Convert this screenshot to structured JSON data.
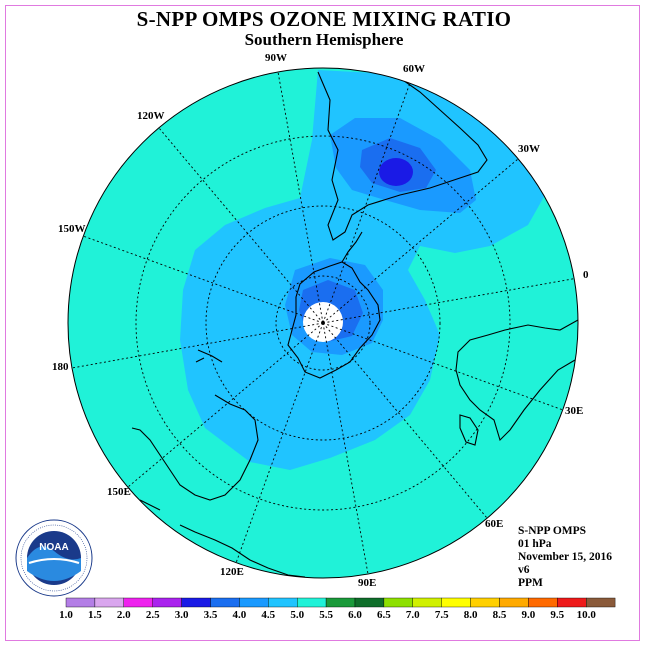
{
  "title": "S-NPP OMPS OZONE MIXING RATIO",
  "subtitle": "Southern Hemisphere",
  "longitude_labels": [
    {
      "key": "lon_90w",
      "text": "90W"
    },
    {
      "key": "lon_60w",
      "text": "60W"
    },
    {
      "key": "lon_120w",
      "text": "120W"
    },
    {
      "key": "lon_30w",
      "text": "30W"
    },
    {
      "key": "lon_150w",
      "text": "150W"
    },
    {
      "key": "lon_0",
      "text": "0"
    },
    {
      "key": "lon_180",
      "text": "180"
    },
    {
      "key": "lon_30e",
      "text": "30E"
    },
    {
      "key": "lon_150e",
      "text": "150E"
    },
    {
      "key": "lon_60e",
      "text": "60E"
    },
    {
      "key": "lon_120e",
      "text": "120E"
    },
    {
      "key": "lon_90e",
      "text": "90E"
    }
  ],
  "info": {
    "instrument": "S-NPP OMPS",
    "level": "01 hPa",
    "date": "November 15, 2016",
    "version": "v6",
    "units": "PPM"
  },
  "logo": {
    "name": "NOAA",
    "ring_text": "NATIONAL OCEANIC AND ATMOSPHERIC ADMINISTRATION · U.S. DEPARTMENT OF COMMERCE"
  },
  "colorbar": {
    "labels": [
      "1.0",
      "1.5",
      "2.0",
      "2.5",
      "3.0",
      "3.5",
      "4.0",
      "4.5",
      "5.0",
      "5.5",
      "6.0",
      "6.5",
      "7.0",
      "7.5",
      "8.0",
      "8.5",
      "9.0",
      "9.5",
      "10.0"
    ],
    "colors": [
      "#b37ee6",
      "#d9a6ee",
      "#ee22ee",
      "#aa22ee",
      "#1a1ae6",
      "#1a6ef0",
      "#1a9aff",
      "#20c4ff",
      "#20f2d8",
      "#1a9a3a",
      "#0e6e2a",
      "#8ee000",
      "#d0f000",
      "#ffff00",
      "#ffd000",
      "#ffaa00",
      "#ff6a00",
      "#ee1a1a",
      "#8a5a3a"
    ]
  },
  "map_colors": {
    "c45": "#20f2d8",
    "c40": "#20c4ff",
    "c35": "#1a9aff",
    "c30": "#1a6ef0",
    "c25": "#1a1ae6",
    "pole": "#ffffff"
  }
}
